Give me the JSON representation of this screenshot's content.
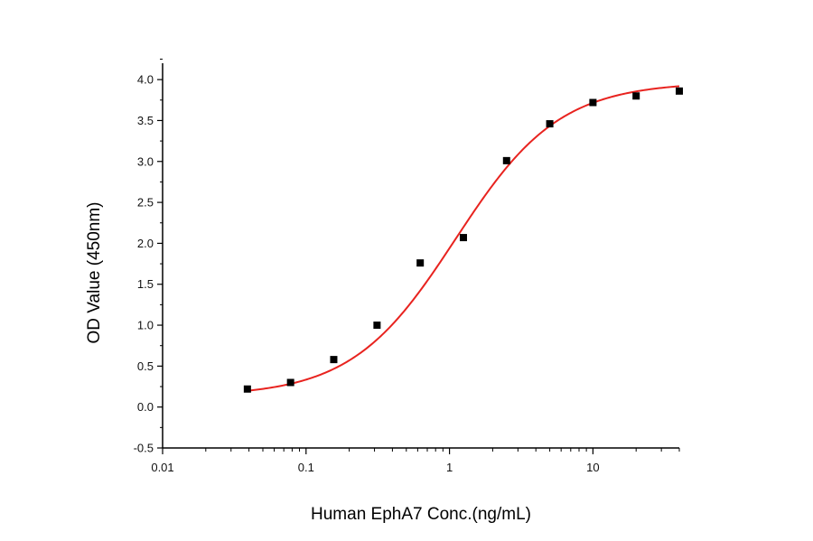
{
  "chart_data": {
    "type": "scatter",
    "title": "",
    "xlabel": "Human EphA7 Conc.(ng/mL)",
    "ylabel": "OD Value (450nm)",
    "xscale": "log",
    "xlim": [
      0.01,
      40
    ],
    "ylim": [
      -0.5,
      4.2
    ],
    "grid": false,
    "legend": "none",
    "x_ticks": [
      {
        "value": 0.01,
        "label": "0.01"
      },
      {
        "value": 0.1,
        "label": "0.1"
      },
      {
        "value": 1,
        "label": "1"
      },
      {
        "value": 10,
        "label": "10"
      }
    ],
    "y_ticks": [
      {
        "value": -0.5,
        "label": "-0.5"
      },
      {
        "value": 0.0,
        "label": "0.0"
      },
      {
        "value": 0.5,
        "label": "0.5"
      },
      {
        "value": 1.0,
        "label": "1.0"
      },
      {
        "value": 1.5,
        "label": "1.5"
      },
      {
        "value": 2.0,
        "label": "2.0"
      },
      {
        "value": 2.5,
        "label": "2.5"
      },
      {
        "value": 3.0,
        "label": "3.0"
      },
      {
        "value": 3.5,
        "label": "3.5"
      },
      {
        "value": 4.0,
        "label": "4.0"
      }
    ],
    "points": [
      {
        "x": 0.039,
        "y": 0.22
      },
      {
        "x": 0.078,
        "y": 0.3
      },
      {
        "x": 0.156,
        "y": 0.58
      },
      {
        "x": 0.3125,
        "y": 1.0
      },
      {
        "x": 0.625,
        "y": 1.76
      },
      {
        "x": 1.25,
        "y": 2.07
      },
      {
        "x": 2.5,
        "y": 3.01
      },
      {
        "x": 5,
        "y": 3.46
      },
      {
        "x": 10,
        "y": 3.72
      },
      {
        "x": 20,
        "y": 3.8
      },
      {
        "x": 40,
        "y": 3.86
      }
    ],
    "fit_curve": {
      "model": "4PL",
      "bottom": 0.13,
      "top": 3.97,
      "ec50": 1.1,
      "hill": 1.2
    },
    "colors": {
      "points": "#000000",
      "fit": "#e8231f",
      "axis": "#000000"
    }
  }
}
